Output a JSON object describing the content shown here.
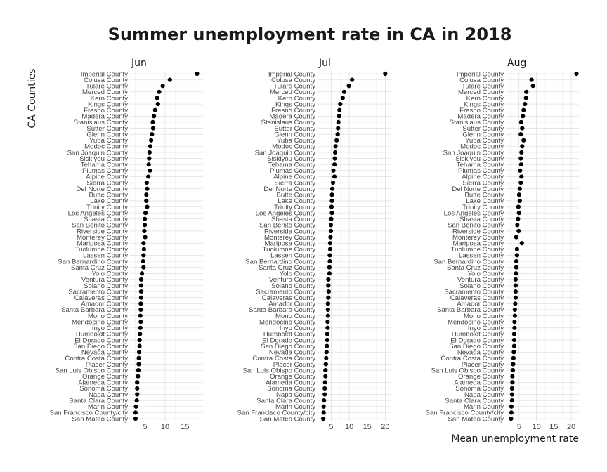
{
  "chart_data": {
    "type": "scatter",
    "title": "Summer unemployment rate in CA in 2018",
    "xlabel": "Mean unemployment rate",
    "ylabel": "CA Counties",
    "facets": [
      "Jun",
      "Jul",
      "Aug"
    ],
    "x_ticks": [
      5,
      10,
      15,
      20
    ],
    "grid": true,
    "counties": [
      "Imperial County",
      "Colusa County",
      "Tulare County",
      "Merced County",
      "Kern County",
      "Kings County",
      "Fresno County",
      "Madera County",
      "Stanislaus County",
      "Sutter County",
      "Glenn County",
      "Yuba County",
      "Modoc County",
      "San Joaquin County",
      "Siskiyou County",
      "Tehama County",
      "Plumas County",
      "Alpine County",
      "Sierra County",
      "Del Norte County",
      "Butte County",
      "Lake County",
      "Trinity County",
      "Los Angeles County",
      "Shasta County",
      "San Benito County",
      "Riverside County",
      "Monterey County",
      "Mariposa County",
      "Tuolumne County",
      "Lassen County",
      "San Bernardino County",
      "Santa Cruz County",
      "Yolo County",
      "Ventura County",
      "Solano County",
      "Sacramento County",
      "Calaveras County",
      "Amador County",
      "Santa Barbara County",
      "Mono County",
      "Mendocino County",
      "Inyo County",
      "Humboldt County",
      "El Dorado County",
      "San Diego County",
      "Nevada County",
      "Contra Costa County",
      "Placer County",
      "San Luis Obispo County",
      "Orange County",
      "Alameda County",
      "Sonoma County",
      "Napa County",
      "Santa Clara County",
      "Marin County",
      "San Francisco County/city",
      "San Mateo County"
    ],
    "series": [
      {
        "name": "Jun",
        "xlim": [
          1.2,
          19.5
        ],
        "values": [
          18.0,
          11.2,
          9.4,
          8.5,
          8.0,
          8.2,
          7.5,
          7.2,
          6.9,
          7.0,
          6.7,
          6.5,
          6.3,
          6.1,
          6.0,
          5.9,
          6.2,
          5.8,
          5.4,
          5.5,
          5.3,
          5.3,
          5.5,
          5.1,
          4.9,
          4.9,
          4.8,
          5.0,
          4.6,
          4.7,
          4.6,
          4.5,
          4.6,
          4.2,
          4.0,
          4.0,
          4.0,
          4.0,
          3.9,
          3.9,
          3.8,
          3.9,
          3.8,
          3.7,
          3.6,
          3.6,
          3.5,
          3.4,
          3.4,
          3.3,
          3.2,
          3.0,
          3.0,
          3.0,
          2.9,
          2.7,
          2.6,
          2.6
        ]
      },
      {
        "name": "Jul",
        "xlim": [
          1.2,
          21.5
        ],
        "values": [
          20.0,
          10.8,
          9.9,
          8.6,
          8.2,
          7.5,
          7.3,
          7.2,
          7.0,
          6.9,
          6.8,
          6.5,
          6.2,
          6.1,
          6.0,
          5.9,
          5.6,
          5.9,
          5.5,
          5.3,
          5.2,
          5.2,
          5.1,
          5.2,
          5.0,
          4.9,
          4.9,
          4.8,
          4.7,
          4.7,
          4.6,
          4.6,
          4.5,
          4.5,
          4.2,
          4.2,
          4.3,
          4.2,
          4.1,
          4.1,
          4.1,
          4.0,
          4.0,
          3.9,
          3.9,
          3.8,
          3.7,
          3.6,
          3.5,
          3.4,
          3.4,
          3.3,
          3.2,
          3.2,
          3.0,
          2.9,
          2.9,
          2.8
        ]
      },
      {
        "name": "Aug",
        "xlim": [
          1.2,
          22.2
        ],
        "values": [
          21.5,
          8.6,
          9.0,
          7.1,
          7.0,
          6.7,
          6.3,
          6.1,
          5.6,
          5.9,
          5.5,
          6.3,
          5.9,
          5.7,
          5.5,
          5.6,
          5.3,
          5.7,
          5.5,
          5.2,
          5.0,
          5.2,
          4.8,
          5.0,
          4.7,
          4.5,
          4.9,
          4.2,
          5.8,
          4.4,
          4.4,
          4.2,
          4.2,
          4.1,
          4.0,
          4.0,
          4.0,
          4.0,
          3.9,
          3.8,
          3.8,
          3.7,
          3.7,
          3.6,
          3.6,
          3.6,
          3.5,
          3.4,
          3.3,
          3.2,
          3.1,
          3.1,
          3.0,
          3.0,
          3.0,
          2.8,
          2.8,
          2.7
        ]
      }
    ]
  }
}
